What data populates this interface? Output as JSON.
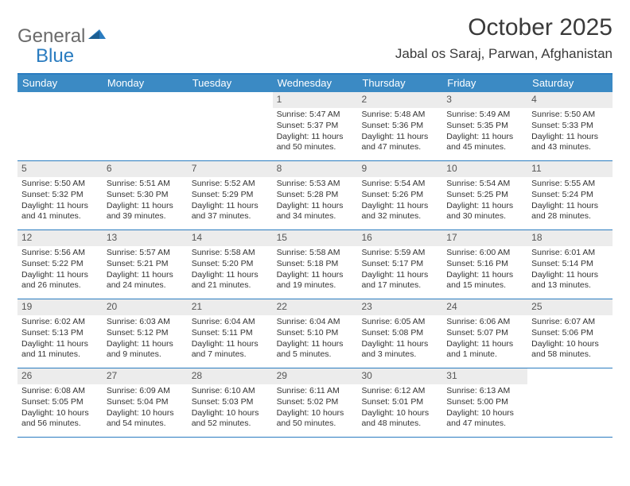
{
  "logo": {
    "text1": "General",
    "text2": "Blue",
    "shape_color": "#2a7cc0"
  },
  "title": "October 2025",
  "location": "Jabal os Saraj, Parwan, Afghanistan",
  "colors": {
    "header_bg": "#3b8ac4",
    "border": "#2a7cc0",
    "daynum_bg": "#ececec",
    "text": "#333333"
  },
  "days_of_week": [
    "Sunday",
    "Monday",
    "Tuesday",
    "Wednesday",
    "Thursday",
    "Friday",
    "Saturday"
  ],
  "weeks": [
    [
      {
        "n": "",
        "sr": "",
        "ss": "",
        "dl": "",
        "empty": true
      },
      {
        "n": "",
        "sr": "",
        "ss": "",
        "dl": "",
        "empty": true
      },
      {
        "n": "",
        "sr": "",
        "ss": "",
        "dl": "",
        "empty": true
      },
      {
        "n": "1",
        "sr": "Sunrise: 5:47 AM",
        "ss": "Sunset: 5:37 PM",
        "dl": "Daylight: 11 hours and 50 minutes."
      },
      {
        "n": "2",
        "sr": "Sunrise: 5:48 AM",
        "ss": "Sunset: 5:36 PM",
        "dl": "Daylight: 11 hours and 47 minutes."
      },
      {
        "n": "3",
        "sr": "Sunrise: 5:49 AM",
        "ss": "Sunset: 5:35 PM",
        "dl": "Daylight: 11 hours and 45 minutes."
      },
      {
        "n": "4",
        "sr": "Sunrise: 5:50 AM",
        "ss": "Sunset: 5:33 PM",
        "dl": "Daylight: 11 hours and 43 minutes."
      }
    ],
    [
      {
        "n": "5",
        "sr": "Sunrise: 5:50 AM",
        "ss": "Sunset: 5:32 PM",
        "dl": "Daylight: 11 hours and 41 minutes."
      },
      {
        "n": "6",
        "sr": "Sunrise: 5:51 AM",
        "ss": "Sunset: 5:30 PM",
        "dl": "Daylight: 11 hours and 39 minutes."
      },
      {
        "n": "7",
        "sr": "Sunrise: 5:52 AM",
        "ss": "Sunset: 5:29 PM",
        "dl": "Daylight: 11 hours and 37 minutes."
      },
      {
        "n": "8",
        "sr": "Sunrise: 5:53 AM",
        "ss": "Sunset: 5:28 PM",
        "dl": "Daylight: 11 hours and 34 minutes."
      },
      {
        "n": "9",
        "sr": "Sunrise: 5:54 AM",
        "ss": "Sunset: 5:26 PM",
        "dl": "Daylight: 11 hours and 32 minutes."
      },
      {
        "n": "10",
        "sr": "Sunrise: 5:54 AM",
        "ss": "Sunset: 5:25 PM",
        "dl": "Daylight: 11 hours and 30 minutes."
      },
      {
        "n": "11",
        "sr": "Sunrise: 5:55 AM",
        "ss": "Sunset: 5:24 PM",
        "dl": "Daylight: 11 hours and 28 minutes."
      }
    ],
    [
      {
        "n": "12",
        "sr": "Sunrise: 5:56 AM",
        "ss": "Sunset: 5:22 PM",
        "dl": "Daylight: 11 hours and 26 minutes."
      },
      {
        "n": "13",
        "sr": "Sunrise: 5:57 AM",
        "ss": "Sunset: 5:21 PM",
        "dl": "Daylight: 11 hours and 24 minutes."
      },
      {
        "n": "14",
        "sr": "Sunrise: 5:58 AM",
        "ss": "Sunset: 5:20 PM",
        "dl": "Daylight: 11 hours and 21 minutes."
      },
      {
        "n": "15",
        "sr": "Sunrise: 5:58 AM",
        "ss": "Sunset: 5:18 PM",
        "dl": "Daylight: 11 hours and 19 minutes."
      },
      {
        "n": "16",
        "sr": "Sunrise: 5:59 AM",
        "ss": "Sunset: 5:17 PM",
        "dl": "Daylight: 11 hours and 17 minutes."
      },
      {
        "n": "17",
        "sr": "Sunrise: 6:00 AM",
        "ss": "Sunset: 5:16 PM",
        "dl": "Daylight: 11 hours and 15 minutes."
      },
      {
        "n": "18",
        "sr": "Sunrise: 6:01 AM",
        "ss": "Sunset: 5:14 PM",
        "dl": "Daylight: 11 hours and 13 minutes."
      }
    ],
    [
      {
        "n": "19",
        "sr": "Sunrise: 6:02 AM",
        "ss": "Sunset: 5:13 PM",
        "dl": "Daylight: 11 hours and 11 minutes."
      },
      {
        "n": "20",
        "sr": "Sunrise: 6:03 AM",
        "ss": "Sunset: 5:12 PM",
        "dl": "Daylight: 11 hours and 9 minutes."
      },
      {
        "n": "21",
        "sr": "Sunrise: 6:04 AM",
        "ss": "Sunset: 5:11 PM",
        "dl": "Daylight: 11 hours and 7 minutes."
      },
      {
        "n": "22",
        "sr": "Sunrise: 6:04 AM",
        "ss": "Sunset: 5:10 PM",
        "dl": "Daylight: 11 hours and 5 minutes."
      },
      {
        "n": "23",
        "sr": "Sunrise: 6:05 AM",
        "ss": "Sunset: 5:08 PM",
        "dl": "Daylight: 11 hours and 3 minutes."
      },
      {
        "n": "24",
        "sr": "Sunrise: 6:06 AM",
        "ss": "Sunset: 5:07 PM",
        "dl": "Daylight: 11 hours and 1 minute."
      },
      {
        "n": "25",
        "sr": "Sunrise: 6:07 AM",
        "ss": "Sunset: 5:06 PM",
        "dl": "Daylight: 10 hours and 58 minutes."
      }
    ],
    [
      {
        "n": "26",
        "sr": "Sunrise: 6:08 AM",
        "ss": "Sunset: 5:05 PM",
        "dl": "Daylight: 10 hours and 56 minutes."
      },
      {
        "n": "27",
        "sr": "Sunrise: 6:09 AM",
        "ss": "Sunset: 5:04 PM",
        "dl": "Daylight: 10 hours and 54 minutes."
      },
      {
        "n": "28",
        "sr": "Sunrise: 6:10 AM",
        "ss": "Sunset: 5:03 PM",
        "dl": "Daylight: 10 hours and 52 minutes."
      },
      {
        "n": "29",
        "sr": "Sunrise: 6:11 AM",
        "ss": "Sunset: 5:02 PM",
        "dl": "Daylight: 10 hours and 50 minutes."
      },
      {
        "n": "30",
        "sr": "Sunrise: 6:12 AM",
        "ss": "Sunset: 5:01 PM",
        "dl": "Daylight: 10 hours and 48 minutes."
      },
      {
        "n": "31",
        "sr": "Sunrise: 6:13 AM",
        "ss": "Sunset: 5:00 PM",
        "dl": "Daylight: 10 hours and 47 minutes."
      },
      {
        "n": "",
        "sr": "",
        "ss": "",
        "dl": "",
        "empty": true
      }
    ]
  ]
}
